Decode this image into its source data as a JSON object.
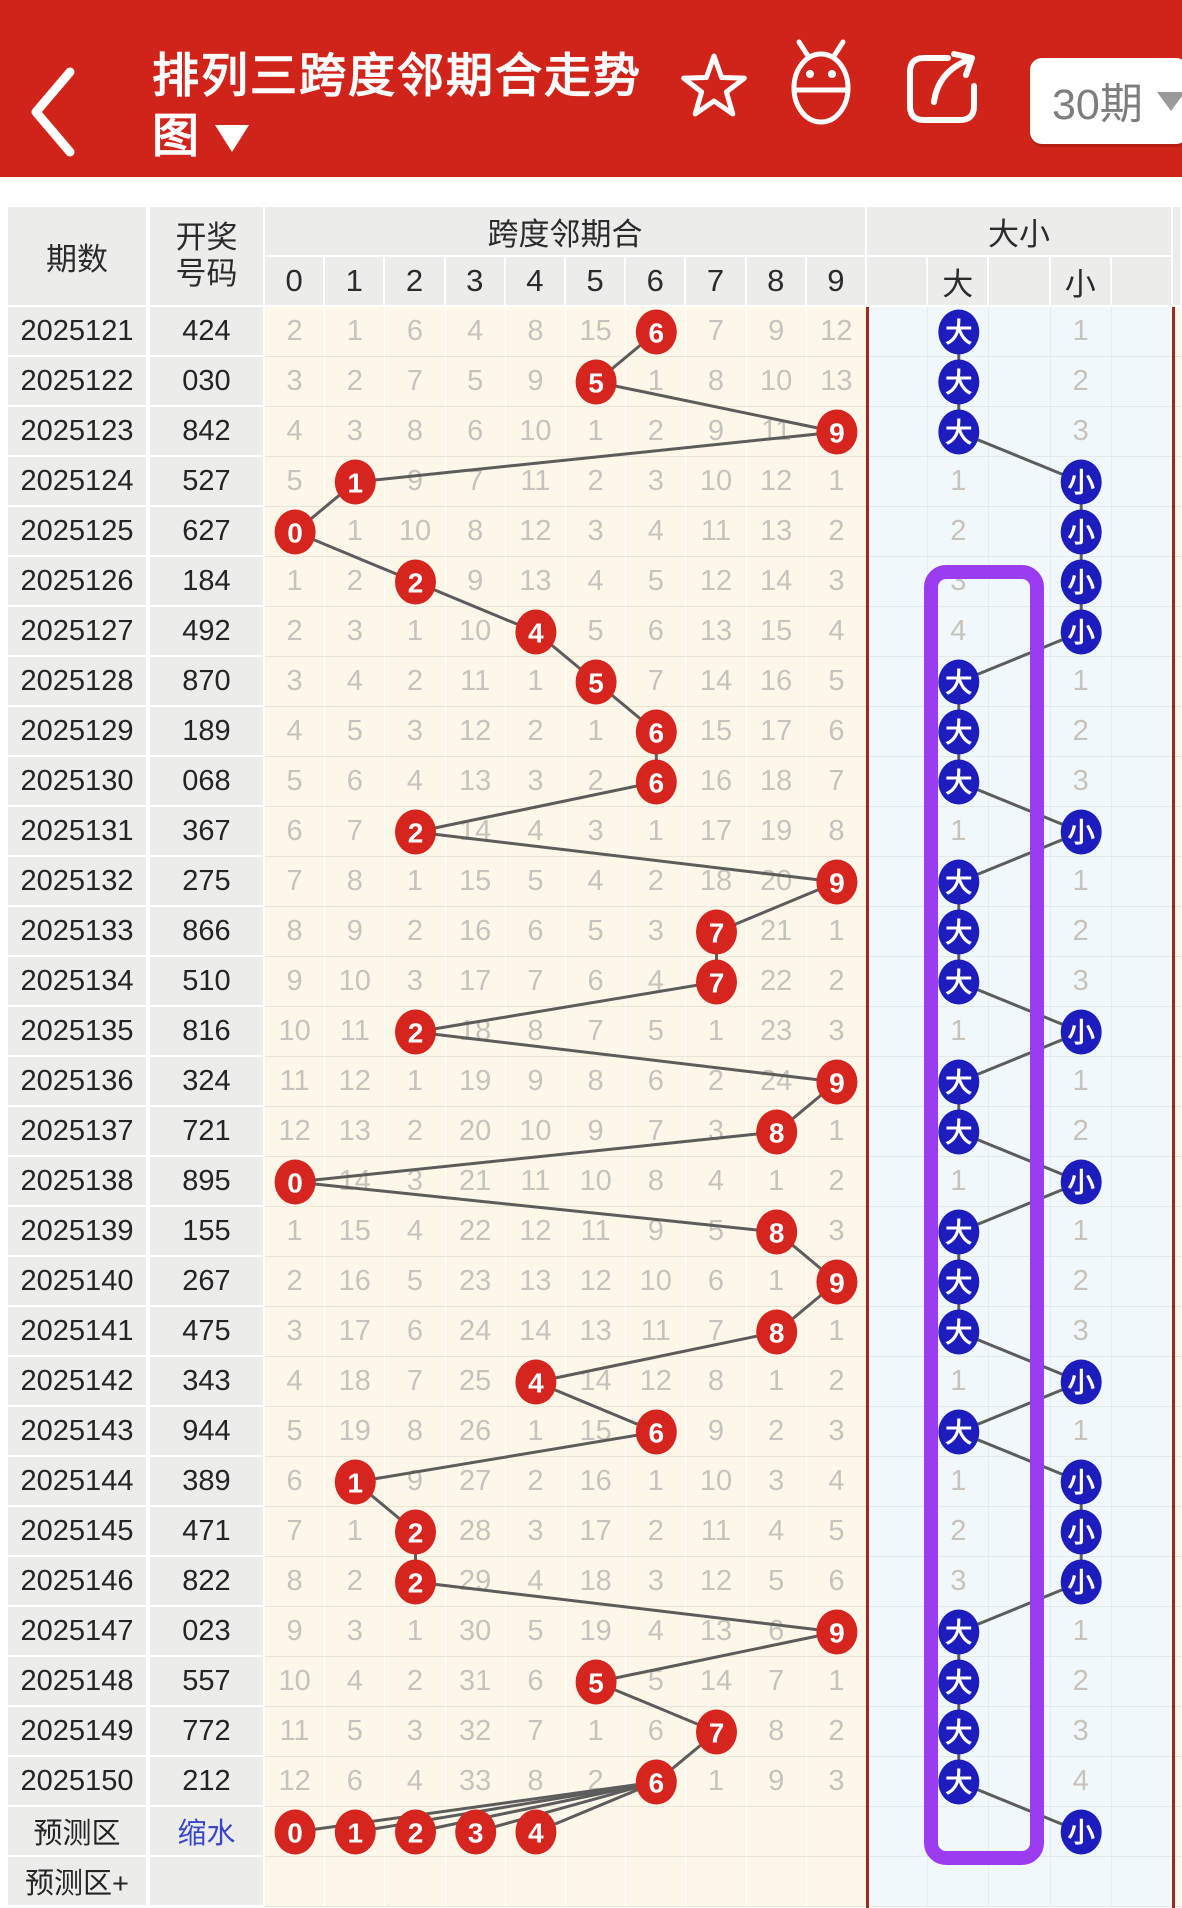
{
  "app_bar": {
    "title_line1": "排列三跨度邻期合走势",
    "title_line2": "图",
    "period_selector_label": "30期"
  },
  "table": {
    "header": {
      "period": "期数",
      "draw_line1": "开奖",
      "draw_line2": "号码",
      "span_group": "跨度邻期合",
      "span_columns": [
        "0",
        "1",
        "2",
        "3",
        "4",
        "5",
        "6",
        "7",
        "8",
        "9"
      ],
      "size_group": "大小",
      "big_label": "大",
      "small_label": "小"
    },
    "rows": [
      {
        "period": "2025121",
        "number": "424",
        "span": 6,
        "misses": [
          2,
          1,
          6,
          4,
          8,
          15,
          null,
          7,
          9,
          12
        ],
        "size": "大",
        "size_miss": 1
      },
      {
        "period": "2025122",
        "number": "030",
        "span": 5,
        "misses": [
          3,
          2,
          7,
          5,
          9,
          null,
          1,
          8,
          10,
          13
        ],
        "size": "大",
        "size_miss": 2
      },
      {
        "period": "2025123",
        "number": "842",
        "span": 9,
        "misses": [
          4,
          3,
          8,
          6,
          10,
          1,
          2,
          9,
          11,
          null
        ],
        "size": "大",
        "size_miss": 3
      },
      {
        "period": "2025124",
        "number": "527",
        "span": 1,
        "misses": [
          5,
          null,
          9,
          7,
          11,
          2,
          3,
          10,
          12,
          1
        ],
        "size": "小",
        "size_miss": 1
      },
      {
        "period": "2025125",
        "number": "627",
        "span": 0,
        "misses": [
          null,
          1,
          10,
          8,
          12,
          3,
          4,
          11,
          13,
          2
        ],
        "size": "小",
        "size_miss": 2
      },
      {
        "period": "2025126",
        "number": "184",
        "span": 2,
        "misses": [
          1,
          2,
          null,
          9,
          13,
          4,
          5,
          12,
          14,
          3
        ],
        "size": "小",
        "size_miss": 3
      },
      {
        "period": "2025127",
        "number": "492",
        "span": 4,
        "misses": [
          2,
          3,
          1,
          10,
          null,
          5,
          6,
          13,
          15,
          4
        ],
        "size": "小",
        "size_miss": 4
      },
      {
        "period": "2025128",
        "number": "870",
        "span": 5,
        "misses": [
          3,
          4,
          2,
          11,
          1,
          null,
          7,
          14,
          16,
          5
        ],
        "size": "大",
        "size_miss": 1
      },
      {
        "period": "2025129",
        "number": "189",
        "span": 6,
        "misses": [
          4,
          5,
          3,
          12,
          2,
          1,
          null,
          15,
          17,
          6
        ],
        "size": "大",
        "size_miss": 2
      },
      {
        "period": "2025130",
        "number": "068",
        "span": 6,
        "misses": [
          5,
          6,
          4,
          13,
          3,
          2,
          null,
          16,
          18,
          7
        ],
        "size": "大",
        "size_miss": 3
      },
      {
        "period": "2025131",
        "number": "367",
        "span": 2,
        "misses": [
          6,
          7,
          null,
          14,
          4,
          3,
          1,
          17,
          19,
          8
        ],
        "size": "小",
        "size_miss": 1
      },
      {
        "period": "2025132",
        "number": "275",
        "span": 9,
        "misses": [
          7,
          8,
          1,
          15,
          5,
          4,
          2,
          18,
          20,
          null
        ],
        "size": "大",
        "size_miss": 1
      },
      {
        "period": "2025133",
        "number": "866",
        "span": 7,
        "misses": [
          8,
          9,
          2,
          16,
          6,
          5,
          3,
          null,
          21,
          1
        ],
        "size": "大",
        "size_miss": 2
      },
      {
        "period": "2025134",
        "number": "510",
        "span": 7,
        "misses": [
          9,
          10,
          3,
          17,
          7,
          6,
          4,
          null,
          22,
          2
        ],
        "size": "大",
        "size_miss": 3
      },
      {
        "period": "2025135",
        "number": "816",
        "span": 2,
        "misses": [
          10,
          11,
          null,
          18,
          8,
          7,
          5,
          1,
          23,
          3
        ],
        "size": "小",
        "size_miss": 1
      },
      {
        "period": "2025136",
        "number": "324",
        "span": 9,
        "misses": [
          11,
          12,
          1,
          19,
          9,
          8,
          6,
          2,
          24,
          null
        ],
        "size": "大",
        "size_miss": 1
      },
      {
        "period": "2025137",
        "number": "721",
        "span": 8,
        "misses": [
          12,
          13,
          2,
          20,
          10,
          9,
          7,
          3,
          null,
          1
        ],
        "size": "大",
        "size_miss": 2
      },
      {
        "period": "2025138",
        "number": "895",
        "span": 0,
        "misses": [
          null,
          14,
          3,
          21,
          11,
          10,
          8,
          4,
          1,
          2
        ],
        "size": "小",
        "size_miss": 1
      },
      {
        "period": "2025139",
        "number": "155",
        "span": 8,
        "misses": [
          1,
          15,
          4,
          22,
          12,
          11,
          9,
          5,
          null,
          3
        ],
        "size": "大",
        "size_miss": 1
      },
      {
        "period": "2025140",
        "number": "267",
        "span": 9,
        "misses": [
          2,
          16,
          5,
          23,
          13,
          12,
          10,
          6,
          1,
          null
        ],
        "size": "大",
        "size_miss": 2
      },
      {
        "period": "2025141",
        "number": "475",
        "span": 8,
        "misses": [
          3,
          17,
          6,
          24,
          14,
          13,
          11,
          7,
          null,
          1
        ],
        "size": "大",
        "size_miss": 3
      },
      {
        "period": "2025142",
        "number": "343",
        "span": 4,
        "misses": [
          4,
          18,
          7,
          25,
          null,
          14,
          12,
          8,
          1,
          2
        ],
        "size": "小",
        "size_miss": 1
      },
      {
        "period": "2025143",
        "number": "944",
        "span": 6,
        "misses": [
          5,
          19,
          8,
          26,
          1,
          15,
          null,
          9,
          2,
          3
        ],
        "size": "大",
        "size_miss": 1
      },
      {
        "period": "2025144",
        "number": "389",
        "span": 1,
        "misses": [
          6,
          null,
          9,
          27,
          2,
          16,
          1,
          10,
          3,
          4
        ],
        "size": "小",
        "size_miss": 1
      },
      {
        "period": "2025145",
        "number": "471",
        "span": 2,
        "misses": [
          7,
          1,
          null,
          28,
          3,
          17,
          2,
          11,
          4,
          5
        ],
        "size": "小",
        "size_miss": 2
      },
      {
        "period": "2025146",
        "number": "822",
        "span": 2,
        "misses": [
          8,
          2,
          null,
          29,
          4,
          18,
          3,
          12,
          5,
          6
        ],
        "size": "小",
        "size_miss": 3
      },
      {
        "period": "2025147",
        "number": "023",
        "span": 9,
        "misses": [
          9,
          3,
          1,
          30,
          5,
          19,
          4,
          13,
          6,
          null
        ],
        "size": "大",
        "size_miss": 1
      },
      {
        "period": "2025148",
        "number": "557",
        "span": 5,
        "misses": [
          10,
          4,
          2,
          31,
          6,
          null,
          5,
          14,
          7,
          1
        ],
        "size": "大",
        "size_miss": 2
      },
      {
        "period": "2025149",
        "number": "772",
        "span": 7,
        "misses": [
          11,
          5,
          3,
          32,
          7,
          1,
          6,
          null,
          8,
          2
        ],
        "size": "大",
        "size_miss": 3
      },
      {
        "period": "2025150",
        "number": "212",
        "span": 6,
        "misses": [
          12,
          6,
          4,
          33,
          8,
          2,
          null,
          1,
          9,
          3
        ],
        "size": "大",
        "size_miss": 4
      }
    ],
    "prediction_row": {
      "label": "预测区",
      "number_label": "缩水",
      "span_values": [
        0,
        1,
        2,
        3,
        4
      ],
      "size": "小"
    },
    "prediction_plus_label": "预测区+"
  },
  "highlight": {
    "target": "big-column",
    "shape": "purple-rounded-rect"
  },
  "colors": {
    "app_bar": "#d0241a",
    "section_line": "#9b2b20",
    "red_circle": "#d6251e",
    "blue_circle": "#1d1dbe",
    "purple": "#9b3cf0",
    "cream_bg": "#fcf7e9",
    "blue_bg": "#f1f8fb",
    "gray_bg": "#ececeb",
    "count_text": "#c6c3bd",
    "trend_line": "#5c5c5c"
  }
}
